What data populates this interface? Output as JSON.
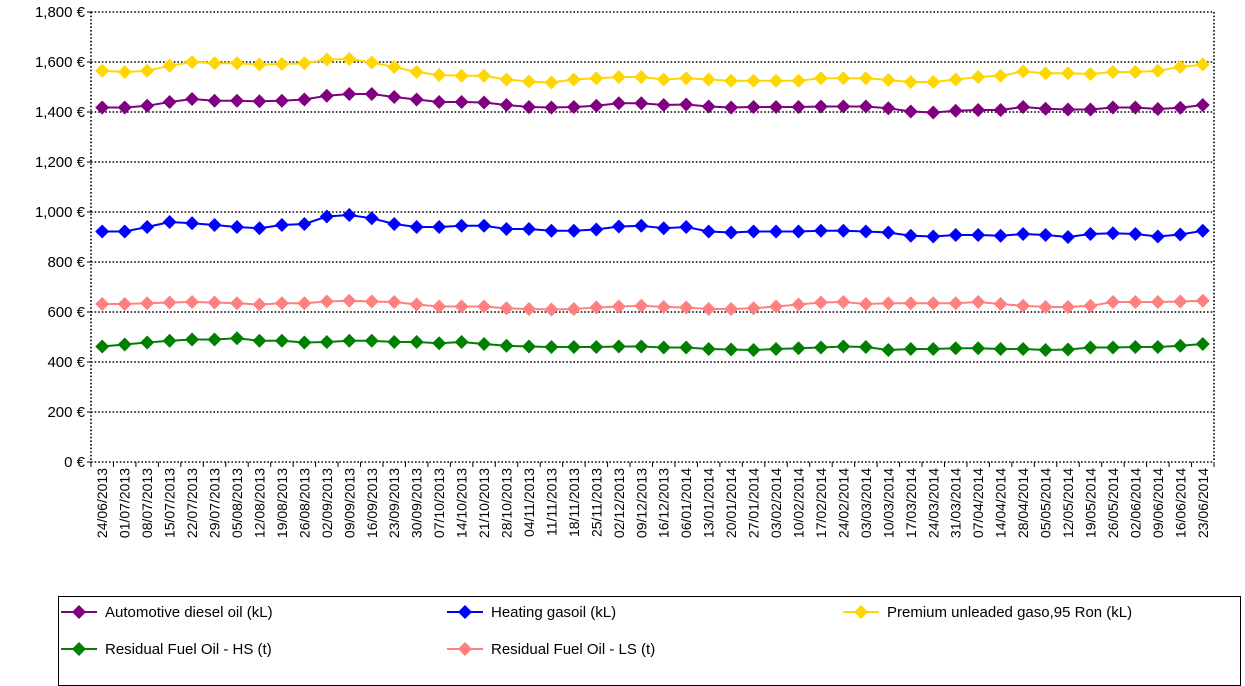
{
  "chart_data": {
    "type": "line",
    "categories": [
      "24/06/2013",
      "01/07/2013",
      "08/07/2013",
      "15/07/2013",
      "22/07/2013",
      "29/07/2013",
      "05/08/2013",
      "12/08/2013",
      "19/08/2013",
      "26/08/2013",
      "02/09/2013",
      "09/09/2013",
      "16/09/2013",
      "23/09/2013",
      "30/09/2013",
      "07/10/2013",
      "14/10/2013",
      "21/10/2013",
      "28/10/2013",
      "04/11/2013",
      "11/11/2013",
      "18/11/2013",
      "25/11/2013",
      "02/12/2013",
      "09/12/2013",
      "16/12/2013",
      "06/01/2014",
      "13/01/2014",
      "20/01/2014",
      "27/01/2014",
      "03/02/2014",
      "10/02/2014",
      "17/02/2014",
      "24/02/2014",
      "03/03/2014",
      "10/03/2014",
      "17/03/2014",
      "24/03/2014",
      "31/03/2014",
      "07/04/2014",
      "14/04/2014",
      "28/04/2014",
      "05/05/2014",
      "12/05/2014",
      "19/05/2014",
      "26/05/2014",
      "02/06/2014",
      "09/06/2014",
      "16/06/2014",
      "23/06/2014"
    ],
    "y_tick_labels": [
      "0 €",
      "200 €",
      "400 €",
      "600 €",
      "800 €",
      "1,000 €",
      "1,200 €",
      "1,400 €",
      "1,600 €",
      "1,800 €"
    ],
    "ylim": [
      0,
      1800
    ],
    "grid": "horizontal dotted",
    "legend_position": "bottom",
    "series": [
      {
        "name": "Automotive diesel oil (kL)",
        "color": "#800080",
        "values": [
          1418,
          1418,
          1425,
          1440,
          1452,
          1445,
          1445,
          1443,
          1445,
          1450,
          1465,
          1472,
          1472,
          1460,
          1450,
          1440,
          1440,
          1438,
          1428,
          1420,
          1418,
          1420,
          1425,
          1435,
          1435,
          1428,
          1430,
          1422,
          1418,
          1420,
          1420,
          1420,
          1422,
          1422,
          1422,
          1415,
          1402,
          1398,
          1405,
          1408,
          1408,
          1420,
          1413,
          1410,
          1410,
          1418,
          1418,
          1412,
          1417,
          1428
        ]
      },
      {
        "name": "Heating gasoil (kL)",
        "color": "#0000ff",
        "values": [
          922,
          922,
          940,
          960,
          955,
          948,
          940,
          935,
          948,
          952,
          982,
          988,
          975,
          952,
          940,
          940,
          945,
          945,
          932,
          932,
          925,
          925,
          930,
          942,
          945,
          935,
          940,
          922,
          918,
          922,
          922,
          922,
          925,
          925,
          922,
          918,
          905,
          902,
          908,
          908,
          905,
          912,
          908,
          900,
          912,
          915,
          912,
          902,
          910,
          925
        ]
      },
      {
        "name": "Premium unleaded gaso,95 Ron (kL)",
        "color": "#ffd700",
        "values": [
          1565,
          1560,
          1565,
          1585,
          1600,
          1595,
          1595,
          1590,
          1592,
          1595,
          1610,
          1612,
          1598,
          1580,
          1560,
          1548,
          1545,
          1545,
          1530,
          1522,
          1518,
          1530,
          1535,
          1540,
          1540,
          1530,
          1535,
          1530,
          1525,
          1525,
          1525,
          1525,
          1535,
          1535,
          1535,
          1528,
          1520,
          1520,
          1530,
          1540,
          1545,
          1562,
          1555,
          1555,
          1552,
          1560,
          1560,
          1565,
          1580,
          1590
        ]
      },
      {
        "name": "Residual Fuel Oil - HS (t)",
        "color": "#008000",
        "values": [
          462,
          470,
          478,
          485,
          490,
          490,
          495,
          485,
          485,
          478,
          480,
          485,
          485,
          480,
          480,
          475,
          480,
          472,
          465,
          462,
          460,
          460,
          460,
          462,
          462,
          458,
          458,
          452,
          450,
          448,
          452,
          455,
          458,
          462,
          460,
          448,
          452,
          452,
          455,
          455,
          452,
          452,
          448,
          450,
          458,
          458,
          460,
          460,
          465,
          472
        ]
      },
      {
        "name": "Residual Fuel Oil - LS (t)",
        "color": "#ff8080",
        "values": [
          632,
          632,
          635,
          638,
          640,
          638,
          635,
          630,
          635,
          635,
          642,
          645,
          642,
          640,
          630,
          622,
          622,
          622,
          615,
          612,
          610,
          612,
          618,
          622,
          625,
          620,
          618,
          612,
          612,
          615,
          622,
          630,
          638,
          640,
          632,
          635,
          635,
          635,
          635,
          640,
          632,
          625,
          620,
          620,
          625,
          640,
          640,
          640,
          642,
          645
        ]
      }
    ]
  }
}
